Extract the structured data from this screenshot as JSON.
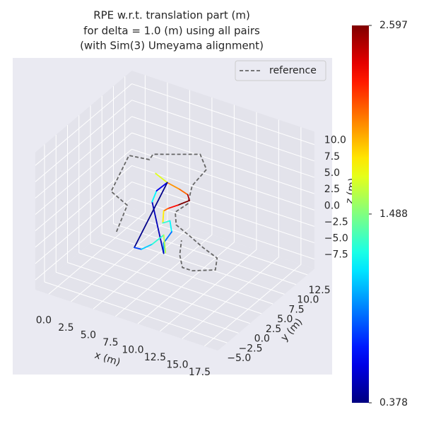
{
  "chart_data": {
    "type": "line3d",
    "title": [
      "RPE w.r.t. translation part (m)",
      "for delta = 1.0 (m) using all pairs",
      "(with Sim(3) Umeyama alignment)"
    ],
    "x_label": "x (m)",
    "y_label": "y (m)",
    "z_label": "z (m)",
    "xlim": [
      -1.5,
      19
    ],
    "ylim": [
      -7,
      14
    ],
    "zlim": [
      -9,
      12
    ],
    "xticks": [
      {
        "value": 0,
        "label": "0.0"
      },
      2.5,
      {
        "value": 5,
        "label": "5.0"
      },
      7.5,
      {
        "value": 10,
        "label": "10.0"
      },
      12.5,
      {
        "value": 15,
        "label": "15.0"
      },
      17.5
    ],
    "yticks": [
      {
        "value": -5,
        "label": "−5.0"
      },
      {
        "value": -2.5,
        "label": "−2.5"
      },
      {
        "value": 0,
        "label": "0.0"
      },
      2.5,
      {
        "value": 5,
        "label": "5.0"
      },
      7.5,
      {
        "value": 10,
        "label": "10.0"
      },
      12.5
    ],
    "zticks": [
      {
        "value": -7.5,
        "label": "−7.5"
      },
      {
        "value": -5,
        "label": "−5.0"
      },
      {
        "value": -2.5,
        "label": "−2.5"
      },
      {
        "value": 0,
        "label": "0.0"
      },
      2.5,
      {
        "value": 5,
        "label": "5.0"
      },
      7.5,
      {
        "value": 10,
        "label": "10.0"
      }
    ],
    "grid": true,
    "legend": "upper right",
    "colormap": "jet",
    "clim": [
      0.378,
      2.597
    ],
    "cticks": [
      0.378,
      1.488,
      2.597
    ],
    "series": [
      {
        "name": "reference",
        "color": "#666666",
        "dashed": true,
        "x": [
          2.2,
          3.4,
          1.6,
          3.6,
          5.9,
          6.3,
          11.6,
          12.3,
          10.7,
          10.2,
          8.8,
          8.9,
          10.4,
          11.9,
          13.5,
          13.3,
          10.7,
          9.6,
          9.3,
          9.5
        ],
        "y": [
          3.5,
          3.5,
          3.5,
          3.5,
          3.5,
          3.5,
          3.5,
          3.5,
          3.5,
          3.5,
          3.5,
          3.5,
          3.5,
          3.5,
          3.5,
          3.5,
          3.5,
          3.5,
          3.5,
          3.5
        ],
        "z": [
          -4.7,
          -0.1,
          1.2,
          7.6,
          8.0,
          9.0,
          11.4,
          9.4,
          6.2,
          3.2,
          1.3,
          -0.6,
          -1.6,
          -2.7,
          -3.6,
          -5.5,
          -6.8,
          -6.8,
          -5.0,
          -2.7
        ]
      },
      {
        "x": [
          6.6,
          7.9,
          9.3,
          10.2,
          10.4,
          9.1,
          8.0,
          7.5,
          7.4,
          8.2,
          8.4,
          7.5,
          7.5,
          6.2,
          6.7,
          7.9,
          4.2,
          5.0,
          6.2,
          7.5,
          7.7
        ],
        "y": [
          3.5,
          3.5,
          3.5,
          3.5,
          3.5,
          3.5,
          3.5,
          3.5,
          3.5,
          3.5,
          3.5,
          3.5,
          3.5,
          3.5,
          3.5,
          3.5,
          3.5,
          3.5,
          3.5,
          3.5,
          3.5
        ],
        "z": [
          6.2,
          5.4,
          5.0,
          4.6,
          3.8,
          2.5,
          1.5,
          0.9,
          -1.0,
          -0.3,
          -1.9,
          -4.0,
          -5.6,
          1.7,
          3.6,
          5.4,
          -6.2,
          -6.1,
          -4.8,
          -2.8,
          -5.4
        ],
        "values": [
          1.6,
          1.7,
          2.0,
          2.1,
          2.5,
          2.6,
          2.3,
          2.1,
          1.8,
          1.3,
          1.2,
          0.9,
          1.0,
          0.5,
          1.2,
          0.6,
          0.4,
          0.8,
          1.1,
          1.3,
          1.6
        ]
      }
    ]
  }
}
